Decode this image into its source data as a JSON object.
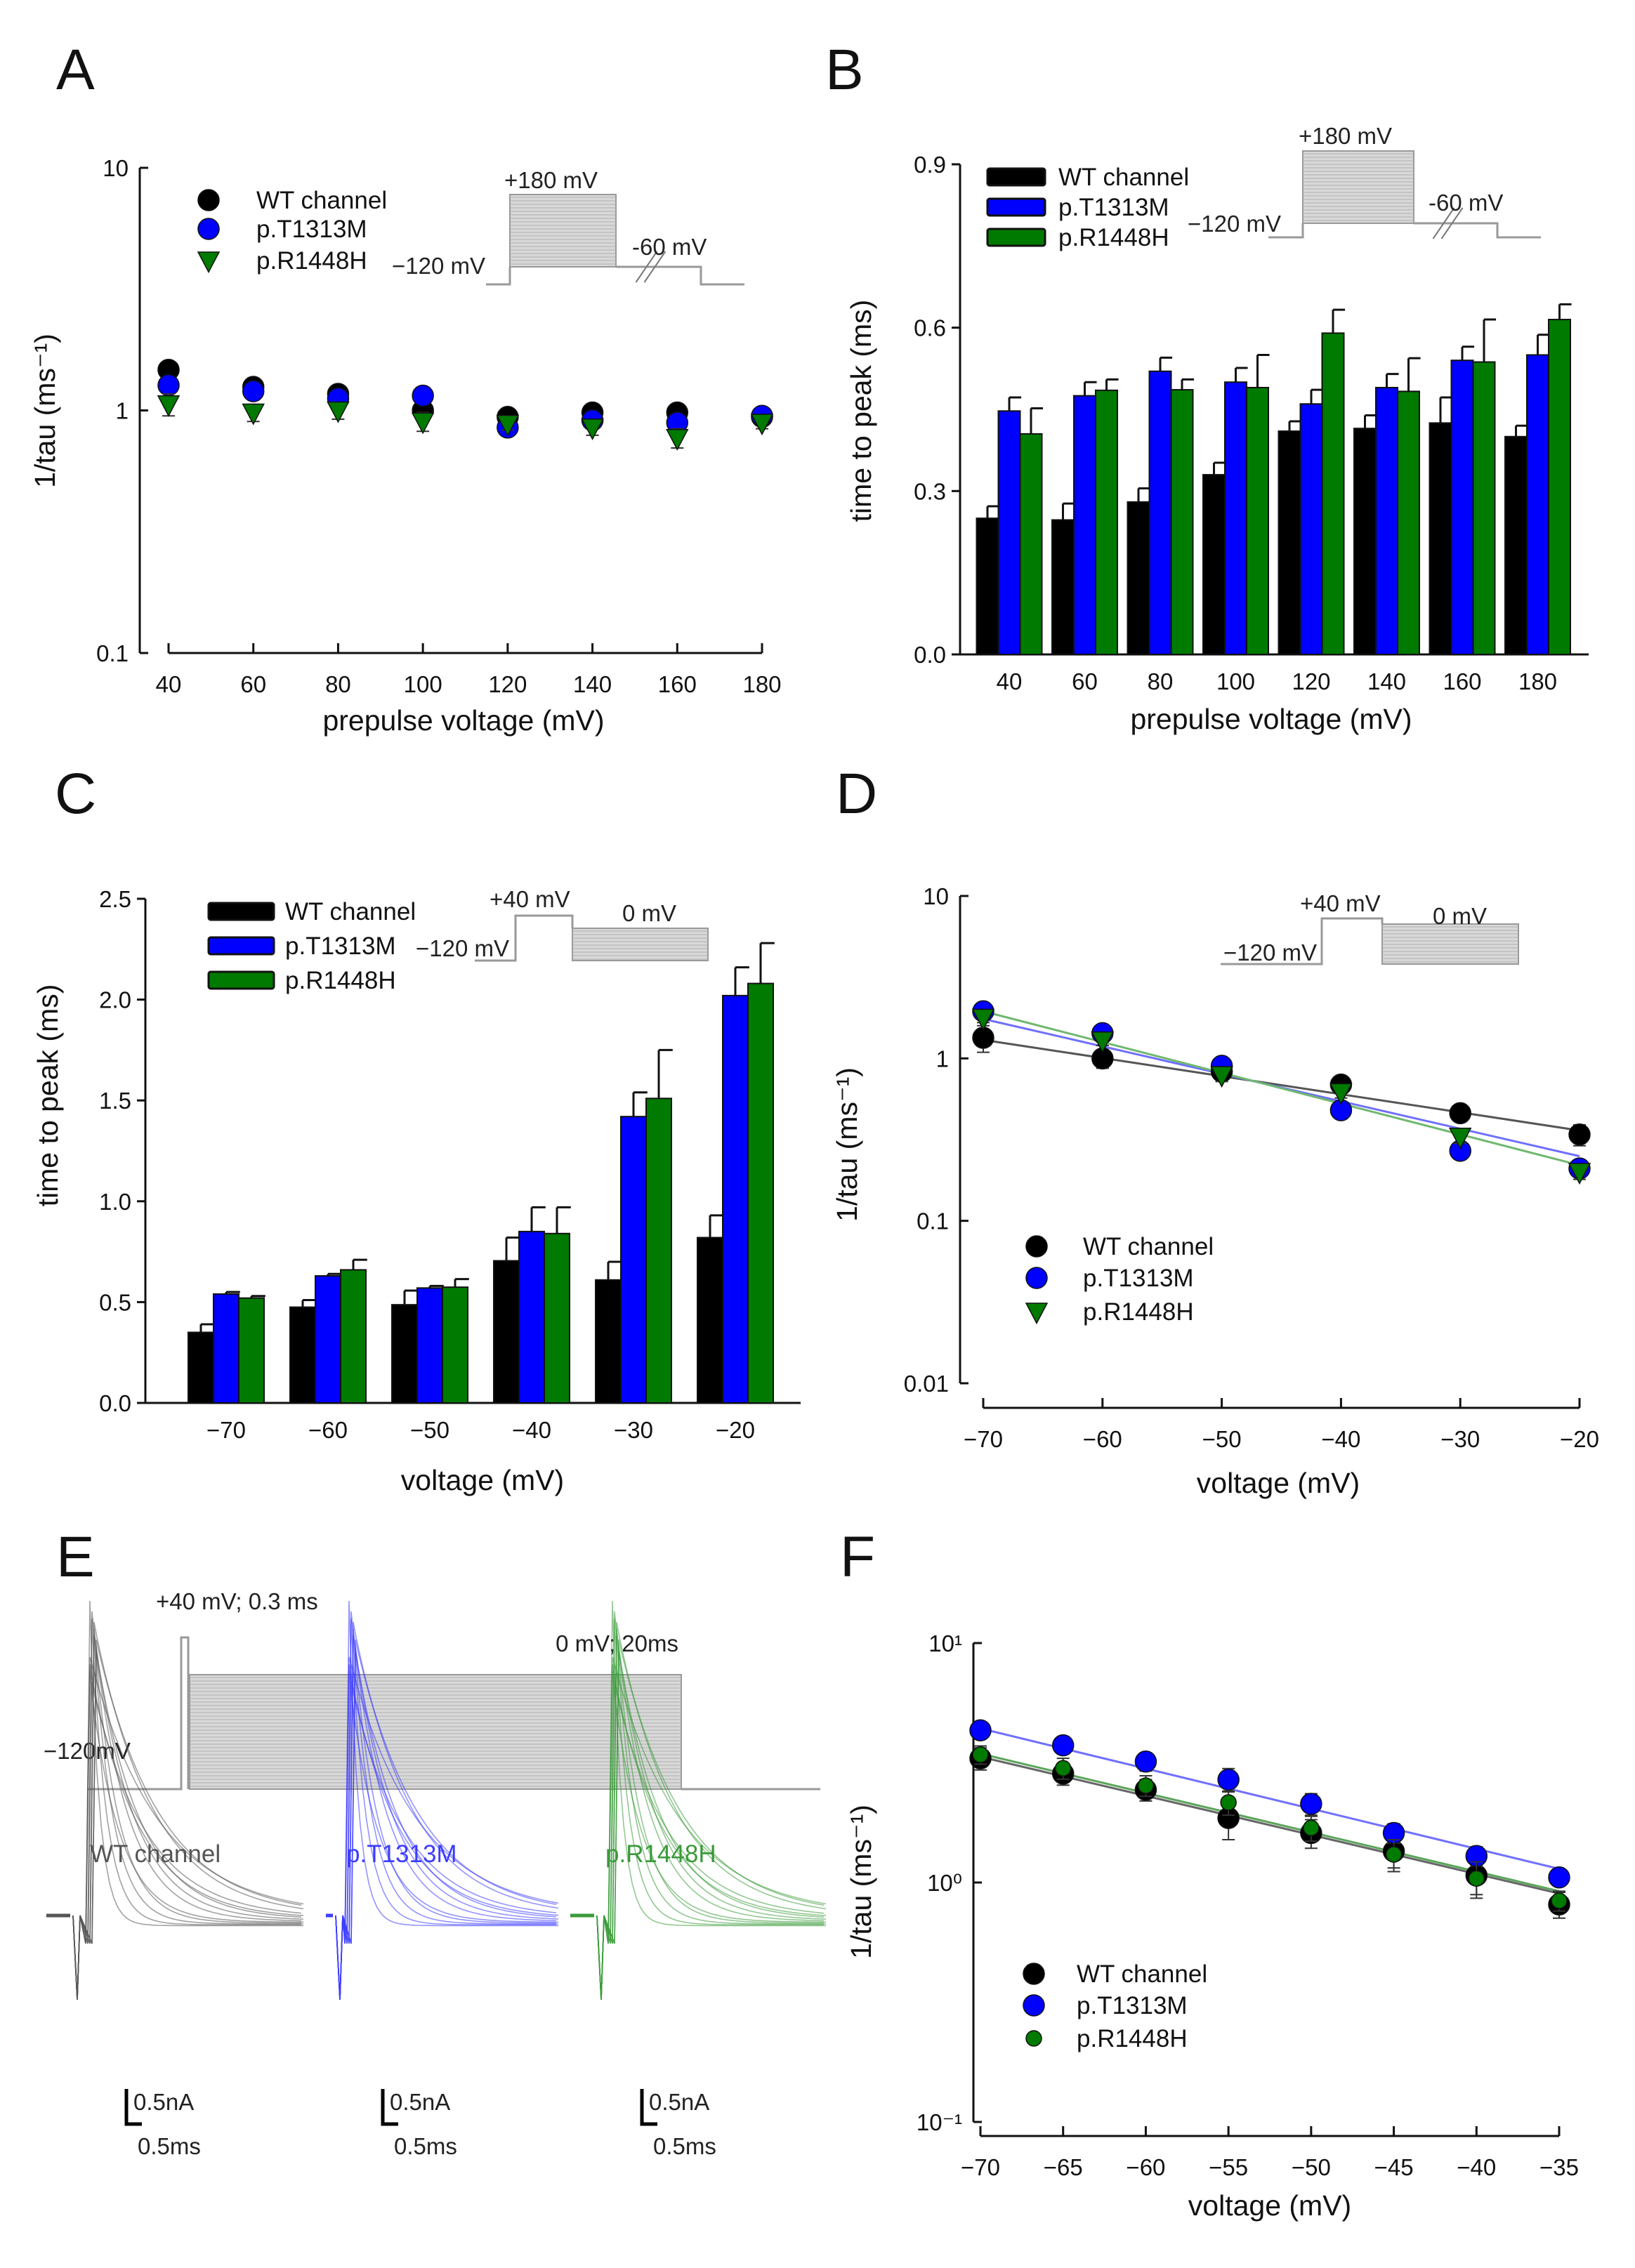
{
  "chart_data": [
    {
      "panel_label": "A",
      "type": "scatter",
      "xlabel": "prepulse voltage (mV)",
      "ylabel": "1/tau (ms⁻¹)",
      "yscale": "log",
      "ylim": [
        0.1,
        10
      ],
      "yticks": [
        0.1,
        1,
        10
      ],
      "ytick_labels": [
        "0.1",
        "1",
        "10"
      ],
      "x": [
        40,
        60,
        80,
        100,
        120,
        140,
        160,
        180
      ],
      "xtick_labels": [
        "40",
        "60",
        "80",
        "100",
        "120",
        "140",
        "160",
        "180"
      ],
      "legend_position": "top-left",
      "series": [
        {
          "name": "WT channel",
          "color": "#000000",
          "marker": "circle",
          "y": [
            1.47,
            1.25,
            1.17,
            1.0,
            0.94,
            0.98,
            0.98,
            0.94
          ],
          "err": [
            0.12,
            0.1,
            0.06,
            0.06,
            0.04,
            0.06,
            0.05,
            0.04
          ]
        },
        {
          "name": "p.T1313M",
          "color": "#0000ff",
          "marker": "circle",
          "y": [
            1.27,
            1.2,
            1.12,
            1.15,
            0.85,
            0.91,
            0.89,
            0.95
          ],
          "err": [
            0.08,
            0.08,
            0.06,
            0.05,
            0.04,
            0.05,
            0.05,
            0.04
          ]
        },
        {
          "name": "p.R1448H",
          "color": "#007a00",
          "marker": "triangle-down",
          "y": [
            1.06,
            0.98,
            1.0,
            0.9,
            0.88,
            0.85,
            0.77,
            0.89
          ],
          "err": [
            0.11,
            0.08,
            0.08,
            0.08,
            0.05,
            0.06,
            0.07,
            0.05
          ]
        }
      ],
      "inset": {
        "step_label": "+180 mV",
        "hold_label": "−120 mV",
        "post_label": "-60 mV"
      }
    },
    {
      "panel_label": "B",
      "type": "bar",
      "xlabel": "prepulse voltage (mV)",
      "ylabel": "time to peak (ms)",
      "ylim": [
        0,
        0.9
      ],
      "yticks": [
        0,
        0.3,
        0.6,
        0.9
      ],
      "ytick_labels": [
        "0.0",
        "0.3",
        "0.6",
        "0.9"
      ],
      "categories": [
        "40",
        "60",
        "80",
        "100",
        "120",
        "140",
        "160",
        "180"
      ],
      "legend_position": "top-left",
      "series": [
        {
          "name": "WT channel",
          "color": "#000000",
          "values": [
            0.25,
            0.247,
            0.28,
            0.33,
            0.41,
            0.415,
            0.425,
            0.4
          ],
          "err": [
            0.022,
            0.03,
            0.025,
            0.022,
            0.018,
            0.024,
            0.047,
            0.02
          ]
        },
        {
          "name": "p.T1313M",
          "color": "#0000ff",
          "values": [
            0.447,
            0.475,
            0.52,
            0.5,
            0.46,
            0.49,
            0.54,
            0.55
          ],
          "err": [
            0.025,
            0.025,
            0.025,
            0.026,
            0.026,
            0.025,
            0.025,
            0.037
          ]
        },
        {
          "name": "p.R1448H",
          "color": "#007a00",
          "values": [
            0.405,
            0.485,
            0.486,
            0.49,
            0.59,
            0.483,
            0.537,
            0.615
          ],
          "err": [
            0.047,
            0.02,
            0.019,
            0.06,
            0.043,
            0.061,
            0.078,
            0.028
          ]
        }
      ],
      "significance": {
        "p.T1313M": "*",
        "p.R1448H": "#"
      },
      "inset": {
        "step_label": "+180 mV",
        "hold_label": "−120 mV",
        "post_label": "-60 mV"
      }
    },
    {
      "panel_label": "C",
      "type": "bar",
      "xlabel": "voltage (mV)",
      "ylabel": "time to peak (ms)",
      "ylim": [
        0,
        2.5
      ],
      "yticks": [
        0,
        0.5,
        1.0,
        1.5,
        2.0,
        2.5
      ],
      "ytick_labels": [
        "0.0",
        "0.5",
        "1.0",
        "1.5",
        "2.0",
        "2.5"
      ],
      "categories": [
        "−70",
        "−60",
        "−50",
        "−40",
        "−30",
        "−20"
      ],
      "legend_position": "top-left",
      "series": [
        {
          "name": "WT channel",
          "color": "#000000",
          "values": [
            0.35,
            0.475,
            0.487,
            0.705,
            0.61,
            0.82
          ],
          "err": [
            0.04,
            0.035,
            0.07,
            0.115,
            0.09,
            0.11
          ]
        },
        {
          "name": "p.T1313M",
          "color": "#0000ff",
          "values": [
            0.54,
            0.63,
            0.57,
            0.85,
            1.42,
            2.02
          ],
          "err": [
            0.01,
            0.01,
            0.01,
            0.12,
            0.12,
            0.14
          ]
        },
        {
          "name": "p.R1448H",
          "color": "#007a00",
          "values": [
            0.52,
            0.66,
            0.574,
            0.84,
            1.51,
            2.08
          ],
          "err": [
            0.01,
            0.05,
            0.04,
            0.13,
            0.24,
            0.2
          ]
        }
      ],
      "significance": {
        "p.T1313M": "*",
        "p.R1448H": "#"
      },
      "inset": {
        "step_label": "+40 mV",
        "hold_label": "−120 mV",
        "post_label": "0 mV"
      }
    },
    {
      "panel_label": "D",
      "type": "scatter",
      "xlabel": "voltage (mV)",
      "ylabel": "1/tau (ms⁻¹)",
      "yscale": "log",
      "ylim": [
        0.01,
        10
      ],
      "yticks": [
        0.01,
        0.1,
        1,
        10
      ],
      "ytick_labels": [
        "0.01",
        "0.1",
        "1",
        "10"
      ],
      "x": [
        -70,
        -60,
        -50,
        -40,
        -30,
        -20
      ],
      "xtick_labels": [
        "−70",
        "−60",
        "−50",
        "−40",
        "−30",
        "−20"
      ],
      "legend_position": "bottom-left",
      "series": [
        {
          "name": "WT channel",
          "color": "#000000",
          "marker": "circle",
          "y": [
            1.34,
            1.0,
            0.83,
            0.69,
            0.46,
            0.34
          ],
          "err": [
            0.25,
            0.13,
            0.08,
            0.06,
            0.04,
            0.05
          ],
          "fit": [
            [
              -70,
              1.3
            ],
            [
              -20,
              0.36
            ]
          ],
          "fit_color": "#555555"
        },
        {
          "name": "p.T1313M",
          "color": "#0000ff",
          "marker": "circle",
          "y": [
            1.95,
            1.43,
            0.9,
            0.48,
            0.27,
            0.21
          ],
          "err": [
            0.1,
            0.1,
            0.06,
            0.04,
            0.02,
            0.02
          ],
          "fit": [
            [
              -70,
              1.75
            ],
            [
              -20,
              0.25
            ]
          ],
          "fit_color": "#6f6fff"
        },
        {
          "name": "p.R1448H",
          "color": "#007a00",
          "marker": "triangle-down",
          "y": [
            1.78,
            1.29,
            0.79,
            0.62,
            0.33,
            0.2
          ],
          "err": [
            0.12,
            0.09,
            0.07,
            0.05,
            0.03,
            0.02
          ],
          "fit": [
            [
              -70,
              1.95
            ],
            [
              -20,
              0.22
            ]
          ],
          "fit_color": "#6fb86f"
        }
      ],
      "inset": {
        "step_label": "+40 mV",
        "hold_label": "−120 mV",
        "post_label": "0 mV"
      }
    },
    {
      "panel_label": "E",
      "type": "line",
      "protocol": {
        "prepulse_label": "+40 mV; 0.3 ms",
        "test_label": "0 mV; 20ms",
        "hold_label": "−120mV"
      },
      "traces": [
        {
          "name": "WT channel",
          "color": "#555555"
        },
        {
          "name": "p.T1313M",
          "color": "#3c3cff"
        },
        {
          "name": "p.R1448H",
          "color": "#3a9a3a"
        }
      ],
      "scale_bar": {
        "current": "0.5nA",
        "time": "0.5ms"
      }
    },
    {
      "panel_label": "F",
      "type": "scatter",
      "xlabel": "voltage (mV)",
      "ylabel": "1/tau (ms⁻¹)",
      "yscale": "log",
      "ylim": [
        0.1,
        10
      ],
      "yticks": [
        0.1,
        1,
        10
      ],
      "ytick_labels": [
        "10⁻¹",
        "10⁰",
        "10¹"
      ],
      "x": [
        -70,
        -65,
        -60,
        -55,
        -50,
        -45,
        -40,
        -35
      ],
      "xtick_labels": [
        "−70",
        "−65",
        "−60",
        "−55",
        "−50",
        "−45",
        "−40",
        "−35"
      ],
      "legend_position": "bottom-left",
      "series": [
        {
          "name": "WT channel",
          "color": "#000000",
          "marker": "circle",
          "y": [
            3.3,
            2.85,
            2.44,
            1.86,
            1.61,
            1.35,
            1.07,
            0.81
          ],
          "err": [
            0.35,
            0.3,
            0.25,
            0.35,
            0.22,
            0.2,
            0.18,
            0.1
          ],
          "fit": [
            [
              -70,
              3.35
            ],
            [
              -35,
              0.9
            ]
          ],
          "fit_color": "#666666"
        },
        {
          "name": "p.T1313M",
          "color": "#0000ff",
          "marker": "circle",
          "y": [
            4.32,
            3.74,
            3.2,
            2.69,
            2.13,
            1.61,
            1.29,
            1.05
          ],
          "err": [
            0.3,
            0.3,
            0.28,
            0.3,
            0.22,
            0.15,
            0.12,
            0.08
          ],
          "fit": [
            [
              -70,
              4.4
            ],
            [
              -35,
              1.14
            ]
          ],
          "fit_color": "#7070ff"
        },
        {
          "name": "p.R1448H",
          "color": "#007a00",
          "marker": "circle-small",
          "y": [
            3.42,
            3.0,
            2.54,
            2.16,
            1.69,
            1.31,
            1.04,
            0.84
          ],
          "err": [
            0.3,
            0.3,
            0.25,
            0.25,
            0.2,
            0.2,
            0.18,
            0.08
          ],
          "fit": [
            [
              -70,
              3.45
            ],
            [
              -35,
              0.92
            ]
          ],
          "fit_color": "#5aa55a"
        }
      ]
    }
  ]
}
